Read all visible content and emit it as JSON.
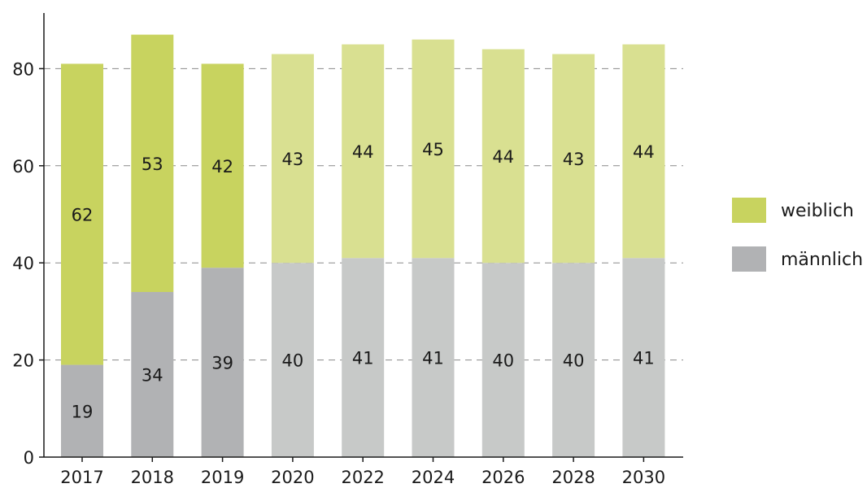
{
  "chart_data": {
    "type": "bar",
    "stacked": true,
    "categories": [
      "2017",
      "2018",
      "2019",
      "2020",
      "2022",
      "2024",
      "2026",
      "2028",
      "2030"
    ],
    "series": [
      {
        "name": "männlich",
        "values": [
          19,
          34,
          39,
          40,
          41,
          41,
          40,
          40,
          41
        ],
        "color": "#b1b2b4",
        "color_projected": "#c7c9c8"
      },
      {
        "name": "weiblich",
        "values": [
          62,
          53,
          42,
          43,
          44,
          45,
          44,
          43,
          44
        ],
        "color": "#c8d35f",
        "color_projected": "#d9e091"
      }
    ],
    "projected_from_category": "2020",
    "y_ticks": [
      0,
      20,
      40,
      60,
      80
    ],
    "ylim": [
      0,
      90
    ],
    "grid": true,
    "legend_position": "right"
  }
}
